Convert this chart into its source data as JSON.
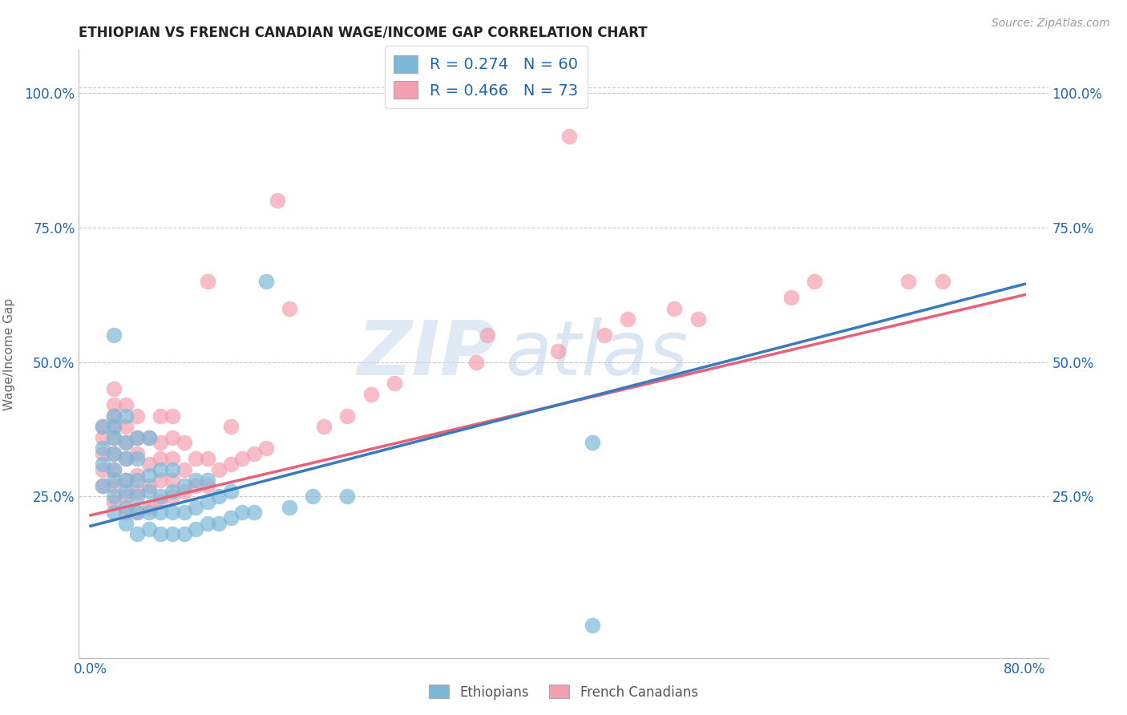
{
  "title": "ETHIOPIAN VS FRENCH CANADIAN WAGE/INCOME GAP CORRELATION CHART",
  "source_text": "Source: ZipAtlas.com",
  "ylabel": "Wage/Income Gap",
  "xlim": [
    -0.01,
    0.82
  ],
  "ylim": [
    -0.05,
    1.08
  ],
  "xticks": [
    0.0,
    0.8
  ],
  "xticklabels": [
    "0.0%",
    "80.0%"
  ],
  "yticks": [
    0.25,
    0.5,
    0.75,
    1.0
  ],
  "yticklabels": [
    "25.0%",
    "50.0%",
    "75.0%",
    "100.0%"
  ],
  "blue_color": "#7db8d8",
  "pink_color": "#f4a0b0",
  "blue_line_color": "#3a7bbf",
  "pink_line_color": "#e8607a",
  "dashed_line_color": "#aac4dd",
  "legend_text_color": "#2166ac",
  "grid_color": "#cccccc",
  "watermark_color": "#ccdded",
  "R_blue": 0.274,
  "N_blue": 60,
  "R_pink": 0.466,
  "N_pink": 73,
  "legend_label_blue": "Ethiopians",
  "legend_label_pink": "French Canadians",
  "blue_trend_x0": 0.0,
  "blue_trend_y0": 0.195,
  "blue_trend_x1": 0.8,
  "blue_trend_y1": 0.645,
  "pink_trend_x0": 0.0,
  "pink_trend_y0": 0.215,
  "pink_trend_x1": 0.8,
  "pink_trend_y1": 0.625,
  "blue_scatter_x": [
    0.01,
    0.01,
    0.01,
    0.01,
    0.02,
    0.02,
    0.02,
    0.02,
    0.02,
    0.02,
    0.02,
    0.02,
    0.02,
    0.03,
    0.03,
    0.03,
    0.03,
    0.03,
    0.03,
    0.03,
    0.04,
    0.04,
    0.04,
    0.04,
    0.04,
    0.04,
    0.05,
    0.05,
    0.05,
    0.05,
    0.05,
    0.06,
    0.06,
    0.06,
    0.06,
    0.07,
    0.07,
    0.07,
    0.07,
    0.08,
    0.08,
    0.08,
    0.09,
    0.09,
    0.09,
    0.1,
    0.1,
    0.1,
    0.11,
    0.11,
    0.12,
    0.12,
    0.13,
    0.14,
    0.15,
    0.17,
    0.19,
    0.22,
    0.43,
    0.43
  ],
  "blue_scatter_y": [
    0.27,
    0.31,
    0.34,
    0.38,
    0.22,
    0.25,
    0.28,
    0.3,
    0.33,
    0.36,
    0.38,
    0.4,
    0.55,
    0.2,
    0.23,
    0.26,
    0.28,
    0.32,
    0.35,
    0.4,
    0.18,
    0.22,
    0.25,
    0.28,
    0.32,
    0.36,
    0.19,
    0.22,
    0.26,
    0.29,
    0.36,
    0.18,
    0.22,
    0.25,
    0.3,
    0.18,
    0.22,
    0.26,
    0.3,
    0.18,
    0.22,
    0.27,
    0.19,
    0.23,
    0.28,
    0.2,
    0.24,
    0.28,
    0.2,
    0.25,
    0.21,
    0.26,
    0.22,
    0.22,
    0.65,
    0.23,
    0.25,
    0.25,
    0.35,
    0.01
  ],
  "pink_scatter_x": [
    0.01,
    0.01,
    0.01,
    0.01,
    0.01,
    0.02,
    0.02,
    0.02,
    0.02,
    0.02,
    0.02,
    0.02,
    0.02,
    0.02,
    0.03,
    0.03,
    0.03,
    0.03,
    0.03,
    0.03,
    0.03,
    0.04,
    0.04,
    0.04,
    0.04,
    0.04,
    0.04,
    0.05,
    0.05,
    0.05,
    0.05,
    0.06,
    0.06,
    0.06,
    0.06,
    0.06,
    0.07,
    0.07,
    0.07,
    0.07,
    0.07,
    0.08,
    0.08,
    0.08,
    0.09,
    0.09,
    0.1,
    0.1,
    0.1,
    0.11,
    0.12,
    0.12,
    0.13,
    0.14,
    0.15,
    0.16,
    0.17,
    0.2,
    0.22,
    0.24,
    0.26,
    0.33,
    0.34,
    0.4,
    0.41,
    0.44,
    0.46,
    0.5,
    0.52,
    0.6,
    0.62,
    0.7,
    0.73
  ],
  "pink_scatter_y": [
    0.27,
    0.3,
    0.33,
    0.36,
    0.38,
    0.24,
    0.27,
    0.3,
    0.33,
    0.36,
    0.38,
    0.4,
    0.42,
    0.45,
    0.22,
    0.25,
    0.28,
    0.32,
    0.35,
    0.38,
    0.42,
    0.22,
    0.26,
    0.29,
    0.33,
    0.36,
    0.4,
    0.23,
    0.27,
    0.31,
    0.36,
    0.24,
    0.28,
    0.32,
    0.35,
    0.4,
    0.25,
    0.28,
    0.32,
    0.36,
    0.4,
    0.26,
    0.3,
    0.35,
    0.27,
    0.32,
    0.27,
    0.32,
    0.65,
    0.3,
    0.31,
    0.38,
    0.32,
    0.33,
    0.34,
    0.8,
    0.6,
    0.38,
    0.4,
    0.44,
    0.46,
    0.5,
    0.55,
    0.52,
    0.92,
    0.55,
    0.58,
    0.6,
    0.58,
    0.62,
    0.65,
    0.65,
    0.65
  ]
}
